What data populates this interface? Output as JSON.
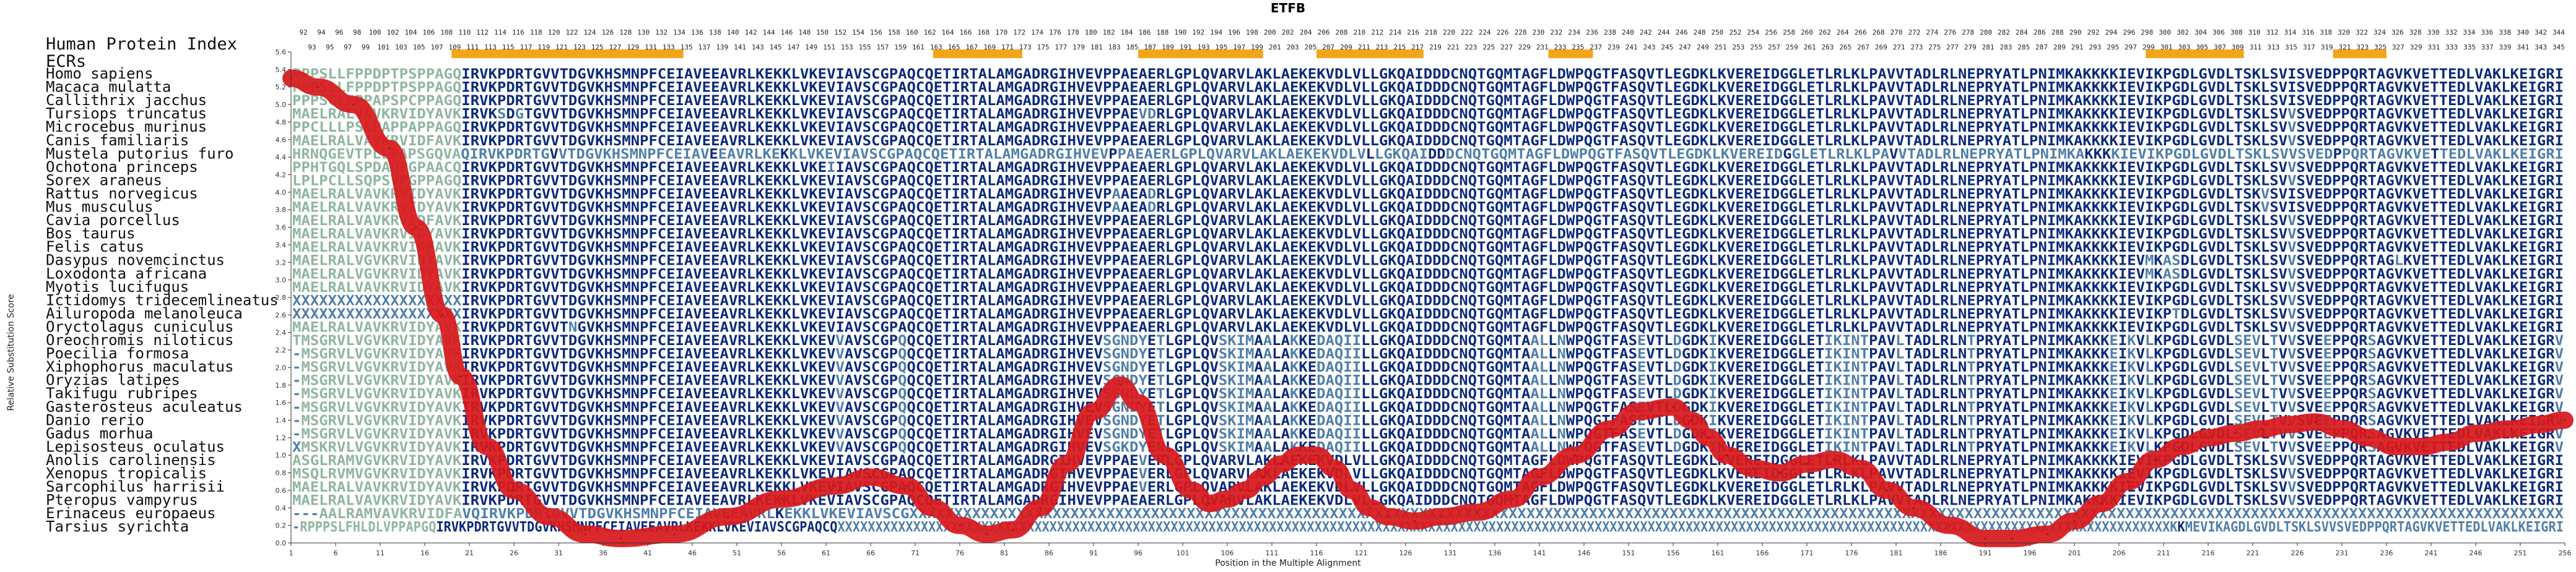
{
  "chart_data": {
    "type": "line",
    "title": "ETFB",
    "xlabel": "Position in the Multiple Alignment",
    "ylabel": "Relative Substitution Score",
    "xlim": [
      1,
      256
    ],
    "ylim": [
      0.0,
      5.6
    ],
    "y_ticks": [
      "0.0",
      "0.2",
      "0.4",
      "0.6",
      "0.8",
      "1.0",
      "1.2",
      "1.4",
      "1.6",
      "1.8",
      "2.0",
      "2.2",
      "2.4",
      "2.6",
      "2.8",
      "3.0",
      "3.2",
      "3.4",
      "3.6",
      "3.8",
      "4.0",
      "4.2",
      "4.4",
      "4.6",
      "4.8",
      "5.0",
      "5.2",
      "5.4",
      "5.6"
    ],
    "x_ticks": [
      "1",
      "6",
      "11",
      "16",
      "21",
      "26",
      "31",
      "36",
      "41",
      "46",
      "51",
      "56",
      "61",
      "66",
      "71",
      "76",
      "81",
      "86",
      "91",
      "96",
      "101",
      "106",
      "111",
      "116",
      "121",
      "126",
      "131",
      "136",
      "141",
      "146",
      "151",
      "156",
      "161",
      "166",
      "171",
      "176",
      "181",
      "186",
      "191",
      "196",
      "201",
      "206",
      "211",
      "216",
      "221",
      "226",
      "231",
      "236",
      "241",
      "246",
      "251",
      "256"
    ],
    "row_label_hpi": "Human Protein Index",
    "row_label_ecr": "ECRs",
    "hpi_top": [
      "92",
      "94",
      "96",
      "98",
      "100",
      "102",
      "104",
      "106",
      "108",
      "110",
      "112",
      "114",
      "116",
      "118",
      "120",
      "122",
      "124",
      "126",
      "128",
      "130",
      "132",
      "134",
      "136",
      "138",
      "140",
      "142",
      "144",
      "146",
      "148",
      "150",
      "152",
      "154",
      "156",
      "158",
      "160",
      "162",
      "164",
      "166",
      "168",
      "170",
      "172",
      "174",
      "176",
      "178",
      "180",
      "182",
      "184",
      "186",
      "188",
      "190",
      "192",
      "194",
      "196",
      "198",
      "200",
      "202",
      "204",
      "206",
      "208",
      "210",
      "212",
      "214",
      "216",
      "218",
      "220",
      "222",
      "224",
      "226",
      "228",
      "230",
      "232",
      "234",
      "236",
      "238",
      "240",
      "242",
      "244",
      "246",
      "248",
      "250",
      "252",
      "254",
      "256",
      "258",
      "260",
      "262",
      "264",
      "266",
      "268",
      "270",
      "272",
      "274",
      "276",
      "278",
      "280",
      "282",
      "284",
      "286",
      "288",
      "290",
      "292",
      "294",
      "296",
      "298",
      "300",
      "302",
      "304",
      "306",
      "308",
      "310",
      "312",
      "314",
      "316",
      "318",
      "320",
      "322",
      "324",
      "326",
      "328",
      "330",
      "332",
      "334",
      "336",
      "338",
      "340",
      "342",
      "344"
    ],
    "hpi_bottom": [
      "93",
      "95",
      "97",
      "99",
      "101",
      "103",
      "105",
      "107",
      "109",
      "111",
      "113",
      "115",
      "117",
      "119",
      "121",
      "123",
      "125",
      "127",
      "129",
      "131",
      "133",
      "135",
      "137",
      "139",
      "141",
      "143",
      "145",
      "147",
      "149",
      "151",
      "153",
      "155",
      "157",
      "159",
      "161",
      "163",
      "165",
      "167",
      "169",
      "171",
      "173",
      "175",
      "177",
      "179",
      "181",
      "183",
      "185",
      "187",
      "189",
      "191",
      "193",
      "195",
      "197",
      "199",
      "201",
      "203",
      "205",
      "207",
      "209",
      "211",
      "213",
      "215",
      "217",
      "219",
      "221",
      "223",
      "225",
      "227",
      "229",
      "231",
      "233",
      "235",
      "237",
      "239",
      "241",
      "243",
      "245",
      "247",
      "249",
      "251",
      "253",
      "255",
      "257",
      "259",
      "261",
      "263",
      "265",
      "267",
      "269",
      "271",
      "273",
      "275",
      "277",
      "279",
      "281",
      "283",
      "285",
      "287",
      "289",
      "291",
      "293",
      "295",
      "297",
      "299",
      "301",
      "303",
      "305",
      "307",
      "309",
      "311",
      "313",
      "315",
      "317",
      "319",
      "321",
      "323",
      "325",
      "327",
      "329",
      "331",
      "333",
      "335",
      "337",
      "339",
      "341",
      "343",
      "345"
    ],
    "ecr_segments": [
      [
        19,
        45
      ],
      [
        73,
        83
      ],
      [
        96,
        110
      ],
      [
        116,
        128
      ],
      [
        142,
        147
      ],
      [
        209,
        220
      ],
      [
        230,
        236
      ]
    ],
    "series": [
      {
        "x": [
          1,
          4,
          8,
          12,
          15,
          18,
          20,
          23,
          26,
          30,
          34,
          38,
          44,
          50,
          56,
          62,
          66,
          70,
          73,
          76,
          79,
          82,
          85,
          88,
          91,
          94,
          96,
          99,
          102,
          104,
          106,
          108,
          110,
          112,
          114,
          116,
          118,
          120,
          122,
          124,
          127,
          130,
          134,
          138,
          141,
          145,
          149,
          152,
          156,
          158,
          160,
          162,
          165,
          168,
          171,
          174,
          177,
          180,
          183,
          187,
          191,
          194,
          198,
          201,
          204,
          207,
          210,
          213,
          216,
          219,
          222,
          225,
          228,
          231,
          234,
          237,
          240,
          243,
          246,
          250,
          253,
          256
        ],
        "y": [
          5.3,
          5.2,
          5.0,
          4.5,
          3.6,
          2.6,
          1.9,
          1.1,
          0.6,
          0.3,
          0.1,
          0.05,
          0.1,
          0.3,
          0.5,
          0.65,
          0.75,
          0.65,
          0.4,
          0.2,
          0.1,
          0.15,
          0.4,
          0.9,
          1.5,
          1.8,
          1.6,
          1.0,
          0.6,
          0.45,
          0.5,
          0.6,
          0.75,
          0.9,
          1.0,
          1.0,
          0.85,
          0.6,
          0.4,
          0.3,
          0.25,
          0.3,
          0.35,
          0.5,
          0.75,
          1.0,
          1.3,
          1.5,
          1.55,
          1.4,
          1.2,
          1.0,
          0.85,
          0.8,
          0.9,
          0.95,
          0.85,
          0.6,
          0.4,
          0.2,
          0.05,
          0.05,
          0.1,
          0.25,
          0.45,
          0.7,
          0.95,
          1.1,
          1.2,
          1.25,
          1.3,
          1.35,
          1.38,
          1.3,
          1.2,
          1.1,
          1.1,
          1.15,
          1.25,
          1.3,
          1.35,
          1.4
        ]
      }
    ]
  },
  "species": [
    "Homo sapiens",
    "Macaca mulatta",
    "Callithrix jacchus",
    "Tursiops truncatus",
    "Microcebus murinus",
    "Canis familiaris",
    "Mustela putorius furo",
    "Ochotona princeps",
    "Sorex araneus",
    "Rattus norvegicus",
    "Mus musculus",
    "Cavia porcellus",
    "Bos taurus",
    "Felis catus",
    "Dasypus novemcinctus",
    "Loxodonta africana",
    "Myotis lucifugus",
    "Ictidomys tridecemlineatus",
    "Ailuropoda melanoleuca",
    "Oryctolagus cuniculus",
    "Oreochromis niloticus",
    "Poecilia formosa",
    "Xiphophorus maculatus",
    "Oryzias latipes",
    "Takifugu rubripes",
    "Gasterosteus aculeatus",
    "Danio rerio",
    "Gadus morhua",
    "Lepisosteus oculatus",
    "Anolis carolinensis",
    "Xenopus tropicalis",
    "Sarcophilus harrisii",
    "Pteropus vampyrus",
    "Erinaceus europaeus",
    "Tarsius syrichta"
  ],
  "sequences": [
    "PPPSLLFPPDPTPSPPAGQIRVKPDRTGVVTDGVKHSMNPFCEIAVEEAVRLKEKKLVKEVIAVSCGPAQCQETIRTALAMGADRGIHVEVPPAEAERLGPLQVARVLAKLAEKEKVDLVLLGKQAIDDDCNQTGQMTAGFLDWPQGTFASQVTLEGDKLKVEREIDGGLETLRLKLPAVVTADLRLNEPRYATLPNIMKAKKKKIEVIKPGDLGVDLTSKLSVISVEDPPQRTAGVKVETTEDLVAKLKEIGRI",
    "PPPSLLFPPDPTPSPPAGQIRVKPDRTGVVTDGVKHSMNPFCEIAVEEAVRLKEKKLVKEVIAVSCGPAQCQETIRTALAMGADRGIHVEVPPAEAERLGPLQVARVLAKLAEKEKVDLVLLGKQAIDDDCNQTGQMTAGFLDWPQGTFASQVTLEGDKLKVEREIDGGLETLRLKLPAVVTADLRLNEPRYATLPNIMKAKKKKIEVIKPGDLGVDLTSKLSVISVEDPPQRTAGVKVETTEDLVAKLKEIGRI",
    "PPPSGLFPPAPSPCPPAGQIRVKPDRTGVVTDGVKHSMNPFCEIAVEEAVRLKEKKLVKEVIAVSCGPAQCQETIRTALAMGADRGIHVEVPPAEAERLGPLQVARVLAKLAEKEKVDLVLLGKQAIDDDCNQTGQMTAGFLDWPQGTFASQVTLEGDKLKVEREIDGGLETLRLKLPAVVTADLRLNEPRYATLPNIMKAKKKKIEVIKPGDLGVDLTSKLSVISVEDPPQRTAGVKVETTEDLVAKLKEIGRI",
    "MAELRALVAVKRVIDYAVKIRVKSDGTGVVTDGVKHSMNPFCEIAVEEAVRLKEKKLVKEVIAVSCGPAQCQETIRTALAMGADRGIHVEVPPAEVDRLGPLQVARVLAKLAEKEKVDLVLLGKQAIDDDCNQTGQMTAGFLDWPQGTFASQVTLEGDKLKVEREIDGGLETLRLKLPAVVTADLRLNEPRYATLPNIMKAKKKKIEVIKPGDLGVDLTSKLSVVSVEDPPQRTAGVKVETTEDLVAKLKEIGRI",
    "PPCLLLPSLPAPPAPPAGQIRVKPDRTGVVTDGVKHSMNPFCEIAVEEAVRLKEKKLVKEVIAVSCGPAQCQETIRTALAMGADRGIHVEVPPAEAERLGPLQVARVLAKLAEKEKVDLVLLGKQAIDDDCNQTGQMTAGFLDWPQGTFASQVTLEGDKLKVEREIDGGLETLRLKLPAVVTADLRLNEPRYATLPNIMKAKKKKIEVIKPGDLGVDLTSKLSVVSVEDPPQRTAGVKVETTEDLVAKLKEIGRI",
    "MAELRALVAVKRVIDFAVKIRVKPDRTGVVTDGVKHSMNPFCEIAVEEAVRLKEKKLVKEVIAVSCGPAQCQETIRTALAMGADRGIHVEVPPAEAERLGPLQVARVLAKLAEKEKVDLVLLGKQAIDDDCNQTGQMTAGFLDWPQGTFASQVTLEGDKLKVEREIDGGLETLRLKLPAVVTADLRLNEPRYATLPNIMKAKKKKIEVIKPGDLGVDLTSKLSVVSVEDPPQRTAGVKVETTEDLVAKLKEIGRI",
    "HRNQGEVTPLLPAPSGQVAQIRVKPDRTGVVTDGVKHSMNPFCEIAVEEAVRLKEKKLVKEVIAVSCGPAQCQETIRTALAMGADRGIHVEVPPAEAERLGPLQVARVLAKLAEKEKVDLVLLGKQAIDDDCNQTGQMTAGFLDWPQGTFASQVTLEGDKLKVEREIDGGLETLRLKLPAVVTADLRLNEPRYATLPNIMKAKKKKIEVIKPGDLGVDLTSKLSVVSVEDPPQRTAGVKVETTEDLVAKLKEIGRI",
    "PPHTGQLSPDAQPGPAACQIRVKPDRTGVVTDGVKHSMNPFCEIAVEEAVRLKEKKLVKEIIAVSCGPAQCQETIRTALAMGADRGIHVEVPPAEAERLGPLQVARVLAKLAEKEKVDLVLLGKQAIDDDCNQTGQMTAGFLDWPQGTFASQVTLEGDKLKVEREIDGGLETLRLKLPAVVTADLRLNEPRYATLPNIMKAKKKKIEVIKPGDLGVDLTSKLSVVSVEDPPQRTAGVKVETTEDLVAKLKEIGRI",
    "LPLPCLLSQPSVPGPPAGQIRVKPDRTGVVTDGVKHSMNPFCEIAVEEAVRLKEKKLVKEVIAVSCGPAQCQETIRTALAMGADRGIHVEVPPAEAERLGPLQVARVLAKLAEKEKVDLVLLGKQAIDDDCNQTGQMTAGFLDWPQGTFASQVTLEGDKLKVEREIDGGLETLRLKLPAVVTADLRLNEPRYATLPNIMKAKKKKIEVIKPGDLGVDLTSKLSVVSVEDPPQRTAGVKVETTEDLVAKLKEIGRI",
    "MAELRALVAVKRVIDYAVKIRVKPDRTGVVTDGVKHSMNPFCEIAVEEAVRLKEKKLVKEVIAVSCGPAQCQETIRTALAMGADRGIHVEVPAAEADRLGPLQVARVLAKLAEKEKVDLVLLGKQAIDDDCNQTGQMTAGFLDWPQGTFASQVTLEGDKLKVEREIDGGLETLRLKLPAVVTADLRLNEPRYATLPNIMKAKKKKIEVIKPGDLGVDLTSKVSVISVEDPPQRTAGVKVETTEDLVAKLKEIGRI",
    "MAELRALVAVKRVIDYAVKIRVKPDRTGVVTDGVKHSMNPFCEIAVEEAVRLKEKKLVKEVIAVSCGPAQCQETIRTALAMGADRGIHVEVPAAEADRLGPLQVARVLAKLAEKEKVDLVLLGKQAIDDDCNQTGQMTAGFLDWPQGTFASQVTLEGDKLKVEREIDGGLETLRLKLPAVVTADLRLNEPRYATLPNIMKAKKKKIEVIKPGDLGVDLTSKVSVISVEDPPQRTAGVKVETTEDLVAKLKEIGRI",
    "MAELRALVAVKRVIDFAVKIRVKPDRTGVVTDGVKHSMNPFCEIAVEEAVRLKEKKLVKEVIAVSCGPAQCQETIRTALAMGADRGIHVEVPPAEAERLGPLQVARVLAKLAEKEKVDLVLLGKQAIDDDCNQTGQMTAGFLDWPQGTFASQVTLEGDKLKVEREIDGGLETLRLKLPAVVTADLRLNEPRYATLPNIMKAKKKKIEVIKPGDLGVDLTSKLSVVSVEDPPQRTAGVKVETTEDLVAKLKEIGRI",
    "MAELRALVAVKRVIDYAVKIRVKPDRTGVVTDGVKHSMNPFCEIAVEEAVRLKEKKLVKEVIAVSCGPAQCQETIRTALAMGADRGIHVEVPPAEAERLGPLQVARVLAKLAEKEKVDLVLLGKQAIDDDCNQTGQMTAGFLDWPQGTFASQVTLEGDKLKVEREIDGGLETLRLKLPAVVTADLRLNEPRYATLPNIMKAKKKKIEVIKPGDLGVDLTSKLSVVSVEDPPQRTAGVKVETTEDLVAKLKEIGRI",
    "MAELRALVAVKRVIDFAVKIRVKPDRTGVVTDGVKHSMNPFCEIAVEEAVRLKEKKLVKEVIAVSCGPAQCQETIRTALAMGADRGIHVEVPPAEAERLGPLQVARVLAKLAEKEKVDLVLLGKQAIDDDCNQTGQMTAGFLDWPQGTFASQVTLEGDKLKVEREIDGGLETLRLKLPAVVTADLRLNEPRYATLPNIMKAKKKKIEVIKPGDLGVDLTSKLSVVSVEDPPQRTAGVKVETTEDLVAKLKEIGRI",
    "MAELRALVGVKRVIDYAVKIRVKPDRTGVVTDGVKHSMNPFCEIAVEEAVRLKEKKLVKEVIAVSCGPAQCQETIRTALAMGADRGIHVEVPPAEAERLGPLQVARVLAKLAEKEKVDLVLLGKQAIDDDCNQTGQMTAGFLDWPQGTFASQVTLEGDKLKVEREIDGGLETLRLKLPAVVTADLRLNEPRYATLPNIMKAKKKKIEVMKASDLGVDLTSKLSVVSVEDPPQRTAGLKVETTEDLVAKLKEIGRI",
    "MAELRALVGVKRVIDYAVKIRVKPDRTGVVTDGVKHSMNPFCEIAVEEAVRLKEKKLVKEVIAVSCGPAQCQETIRTALAMGADRGIHVEVPPAEAERLGPLQVARVLAKLAEKEKVDLVLLGKQAIDDDCNQTGQMTAGFLDWPQGTFASQVTLEGDKLKVEREIDGGLETLRLKLPAVVTADLRLNEPRYATLPNIMKAKKKKIEVMKASDLGVDLTSKLSVVSVEDPPQRTAGVKVETTEDLVAKLKEIGRI",
    "MAELRALVAVKRVIDYAVKIRVKPDRTGVVTDGVKHSMNPFCEIAVEEAVRLKEKKLVKEVIAVSCGPAQCQETIRTALAMGADRGIHVEVPPAEAERLGPLQVARVLAKLAEKEKVDLVLLGKQAIDDDCNQTGQMTAGFLDWPQGTFASQVTLEGDKLKVEREIDGGLETLRLKLPAVVTADLRLNEPRYATLPNIMKAKKKKIEVIKPGDLGVDLTSKLSVVSVEDPPQRTAGVKVETTEDLVAKLKEIGRI",
    "XXXXXXXXXXXXXXXXXXXIRVKPDRTGVVTDGVKHSMNPFCEIAVEEAVRLKEKKLVKEVIAVSCGPAQCQETIRTALAMGADRGIHVEVPPAEAERLGPLQVARVLAKLAEKEKVDLVLLGKQAIDDDCNQTGQMTAGFLDWPQGTFASQVTLEGDKLKVEREIDGGLETLRLKLPAVVTADLRLNEPRYATLPNIMKAKKKKIEVIKPGDLGVDLTSKLSVVSVEDPPQRTAGVKVETTEDLVAKLKEIGRI",
    "XXXXXXXXXXXXXXXXXXXIRVKPDRTGVVTDGVKHSMNPFCEIAVEEAVRLKEKKLVKEVIAVSCGPAQCQETIRTALAMGADRGIHVEVPPAEAERLGPLQVARVLAKLAEKEKVDLVLLGKQAIDDDCNQTGQMTAGFLDWPQGTFASQVTLEGDKLKVEREIDGGLETLRLKLPAVVTADLRLNEPRYATLPNIMKAKKKKIEVIKPTDLGVDLTSKLSVVSVEDPPQRTAGVKVETTEDLVAKLKEIGRI",
    "MAELRALVAVKRVIDYAVKIRVKPDRTGVVTNGVKHSMNPFCEIAVEEAVRLKEKKLVKEVIAVSCGPAQCQETIRTALAMGADRGIHVEVPPAEAERLGPLQVARVLAKLAEKEKVDLVLLGKQAIDDDCNQTGQMTAGFLDWPQGTFASQVTLEGDKLKVEREIDGGLETLRLKLPAVVTADLRLNEPRYATLPNIMKAKKKKIEVIKPGDLGVDLTSKLSVVSVEDPPQRTAGVKVETTEDLVAKLKEIGRI",
    "TMSGRVLVGVKRVIDYAVKIRVKPDRTGVVTDGVKHSMNPFCEIAVEEAVRLKEKKLVKEVVAVSCGPQQCQETIRTALAMGADRGIHVEVSGNDYETLGPLQVSKIMAALAKKEDAQIILLGKQAIDDDCNQTGQMTAALLNWPQGTFASEVTLDGDKIKVEREIDGGLETIKINTPAVLTADLRLNTPRYATLPNIMKAKKKEIKVLKPGDLGVDLSEVLTVVSVEEPPQRSAGVKVETTEDLVAKLKEIGRV",
    "-MSGRVLVGVKRVIDYAVKIRVKPDRTGVVTDGVKHSMNPFCEIAVEEAVRLKEKKLVKEVVAVSCGPQQCQETIRTALAMGADRGIHVEVSGNDYETLGPLQVSKIMAALAKKEDAQIILLGKQAIDDDCNQTGQMTAALLNWPQGTFASEVTLDGDKIKVEREIDGGLETIKINTPAVLTADLRLNTPRYATLPNIMKAKKKEIKVLKPGDLGVDLSEVLTVVSVEEPPQRSAGVKVETTEDLVAKLKEIGRV",
    "-MSGRVLVGVKRVIDYAVKIRVKPDRTGVVTDGVKHSMNPFCEIAVEEAVRLKEKKLVKEVVAVSCGPQQCQETIRTALAMGADRGIHVEVSGNDYETLGPLQVSKIMAALAKKEDAQIILLGKQAIDDDCNQTGQMTAALLNWPQGTFASEVTLDGDKIKVEREIDGGLETIKINTPAVLTADLRLNTPRYATLPNIMKAKKKEIKVLKPGDLGVDLSEVLTVVSVEEPPQRSAGVKVETTEDLVAKLKEIGRV",
    "-MSGRVLVGVKRVIDYAVKIRVKPDRTGVVTDGVKHSMNPFCEIAVEEAVRLKEKKLVKEVVAVSCGPQQCQETIRTALAMGADRGIHVEVSGNDYETLGPLQVSKIMAALAKKEDAQIILLGKQAIDDDCNQTGQMTAALLNWPQGTFASEVTLDGDKIKVEREIDGGLETIKINTPAVLTADLRLNTPRYATLPNIMKAKKKEIKVLKPGDLGVDLSEVLTVVSVEEPPQRSAGVKVETTEDLVAKLKEIGRV",
    "-MSGRVLVGVKRVIDYAVKIRVKPDRTGVVTDGVKHSMNPFCEIAVEEAVRLKEKKLVKEVVAVSCGPQQCQETIRTALAMGADRGIHVEVSGNDYETLGPLQVSKIMAALAKKEDAQIILLGKQAIDDDCNQTGQMTAALLNWPQGTFASEVTLDGDKIKVEREIDGGLETIKINTPAVLTADLRLNTPRYATLPNIMKAKKKEIKVLKPGDLGVDLSEVLTVVSVEEPPQRSAGVKVETTEDLVAKLKEIGRV",
    "-MSGRVLVGVKRVIDYAVKIRVKPDRTGVVTDGVKHSMNPFCEIAVEEAVRLKEKKLVKEVVAVSCGPQQCQETIRTALAMGADRGIHVEVSGNDYETLGPLQVSKIMAALAKKEDAQIILLGKQAIDDDCNQTGQMTAALLNWPQGTFASEVTLDGDKIKVEREIDGGLETIKINTPAVLTADLRLNTPRYATLPNIMKAKKKEIKVLKPGDLGVDLSEVLTVVSVEEPPQRSAGVKVETTEDLVAKLKEIGRV",
    "-MSGRVLVGVKRVIDYAVKIRVKPDRTGVVTDGVKHSMNPFCEIAVEEAVRLKEKKLVKEVVAVSCGPQQCQETIRTALAMGADRGIHVEVSGNDYETLGPLQVSKIMAALAKKEDAQIILLGKQAIDDDCNQTGQMTAALLNWPQGTFASEVTLDGDKIKVEREIDGGLETIKINTPAVLTADLRLNTPRYATLPNIMKAKKKEIKVLKPGDLGVDLSEVLTVVSVEEPPQRSAGVKVETTEDLVAKLKEIGRV",
    "-MSGRVLVGVKRVIDYAVKIRVKPDRTGVVTDGVKHSMNPFCEIAVEEAVRLKEKKLVKEVVAVSCGPQQCQETIRTALAMGADRGIHVEVSGNDYETLGPLQVSKIMAALAKKEDAQIILLGKQAIDDDCNQTGQMTAALLNWPQGTFASEVTLDGDKIKVEREIDGGLETIKINTPAVLTADLRLNTPRYATLPNIMKAKKKEIKVLKPGDLGVDLSEVLTVVSVEEPPQRSAGVKVETTEDLVAKLKEIGRV",
    "XMSKRVLVGVKRVIDYAVKIRVKPDRTGVVTDGVKHSMNPFCEIAVEEAVRLKEKKLVKEVVAVSCGPQQCQETIRTALAMGADRGIHVEVSGKDYENLGPLQVSKIMAALAKKEDAQIILLGKQAIDDDCNQTGQMTAALLNWPQGTFASEVTLDGDKIKVEREIDGGLETIKINTPAVLTADLRLNTPRYATLPNIMKAKKKEIKVLKPGDLGVDLSEVLTVVSVEEPPQRSAGVKVETTEDLVAKLKEIGRV",
    "ASGLRAMVGVKRVIDYAVKIRVKPDRTGVVTDGVKHSMNPFCEIAVEEAVRLKEKKLVKEVIAVSCGPAQCQETIRTALAMGADRGIHVEVPPAEVERLGPLQVARVLAKLAEKEKVDLVLLGKQAIDDDCNQTGQMTAGFLDWPQGTFASQVTLEGDKLKVEREIDGGLETLRLKLPAVVTADLRLNEPRYATLPNIMKAKKKKIEVIKPGDLGVDLTSKLSVVSVEDPPQRTAGVKVETTEDLVAKLKEIGRI",
    "MSQLRVMVGVKRVIDYAVKIRVKPDRTGVVTDGVKHSMNPFCEIAVEEAVRLKEKKLVKEVIAVSCGPAQCQETIRTALAMGADRGIHVEVPPAEVERLGPLQVARVLAKLAEKEKVDLVLLGKQAIDDDCNQTGQMTAGFLDWPQGTFASQVTLEGDKLKVEREIDGGLETLRLKLPAVVTADLRLNEPRYATLPNIMKAKKKKIEVIKPGDLGVDLTSKLSVVSVEDPPQRTAGVKVETTEDLVAKLKEIGRI",
    "MAELRALVAVKRVIDYAVKIRVKPDRTGVVTDGVKHSMNPFCEIAVEEAVRLKEKKLVKEVIAVSCGPAQCQETIRTALAMGADRGIHVEVPPAEVERLGPLQVARVLAKLAEKEKVDLVLLGKQAIDDDCNQTGQMTAGFLDWPQGTFASQVTLEGDKLKVEREIDGGLETLRLKLPAVVTADLRLNEPRYATLPNIMKAKKKKIEVIKPGDLGVDLTSKLSVVSVEDPPQRTAGVKVETTEDLVAKLKEIGRI",
    "MAELRALVAVKRVIDYAVKIRVKPDRTGVVTDGVKHSMNPFCEIAVEEAVRLKEKKLVKEVIAVSCGPAQCQETIRTALAMGADRGIHVEVPPAEAERLGPLQVARVLAKLAEKEKVDLVLLGKQAIDDDCNQTGQMTAGFLDWPQGTFASQVTLEGDKLKVEREIDGGLETLRLKLPAVVTADLRLNEPRYATLPNIMKAKKKKIEVIKPGDLGVDLTSKLSVVSVEDPPQRTAGVKVETTEDLVAKLKEIGRI",
    "---AALRAMVAVKRVIDFAVQIRVKPDRTGVVTDGVKHSMNPFCEIAVEEAVRLKEKKLVKEVIAVSCGXXXXXXXXXXXXXXXXXXXXXXXXXXXXXXXXXXXXXXXXXXXXXXXXXXXXXXXXXXXXXXXXXXXXXXXXXXXXXXXXXXXXXXXXXXXXXXXXXXXXXXXXXXXXXXXXXXXXXXXXXXXXXXXXXXXXXXXXXXXXXXXXXXXXXXXXXXXXXXXXXXXXXXXXXXXXXXXXXXXXXXXXX",
    "-RPPPSLFHLDLVPPAPGQIRVKPDRTGVVTDGVKHSMNPFCEIAVEEAVRLKEKKLVKEVIAVSCGPAQCQXXXXXXXXXXXXXXXXXXXXXXXXXXXXXXXXXXXXXXXXXXXXXXXXXXXXXXXXXXXXXXXXXXXXXXXXXXXXXXXXXXXXXXXXXXXXXXXXXXXXXXXXXXXXXXXXXXXXXXXXXXXXXXXXXXXXXXXXXXXXXXXXXXXXXXXXXXXXXXXXXXXXXXXXXXXXXXXXKKMEVIKAGDLGVDLTSKLSVVSVEDPPQRTAGVKVETTEDLVAKLKEIGRI"
  ],
  "colors": {
    "seq_conserved": "#0b2a7a",
    "seq_variable": "#4f7fa8",
    "seq_divergent": "#8fb6a0",
    "curve": "#d7191c",
    "ecr": "#f3a51a"
  }
}
